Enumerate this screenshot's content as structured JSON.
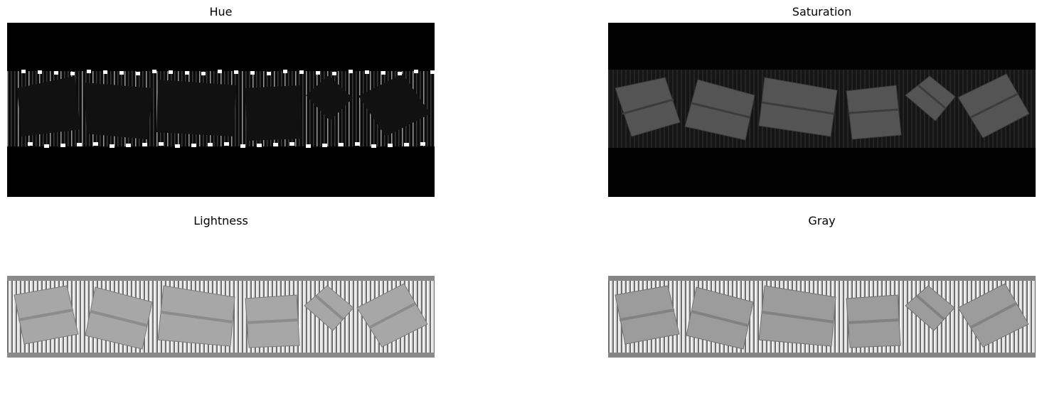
{
  "panels": {
    "hue": {
      "title": "Hue"
    },
    "saturation": {
      "title": "Saturation"
    },
    "lightness": {
      "title": "Lightness"
    },
    "gray": {
      "title": "Gray"
    }
  }
}
